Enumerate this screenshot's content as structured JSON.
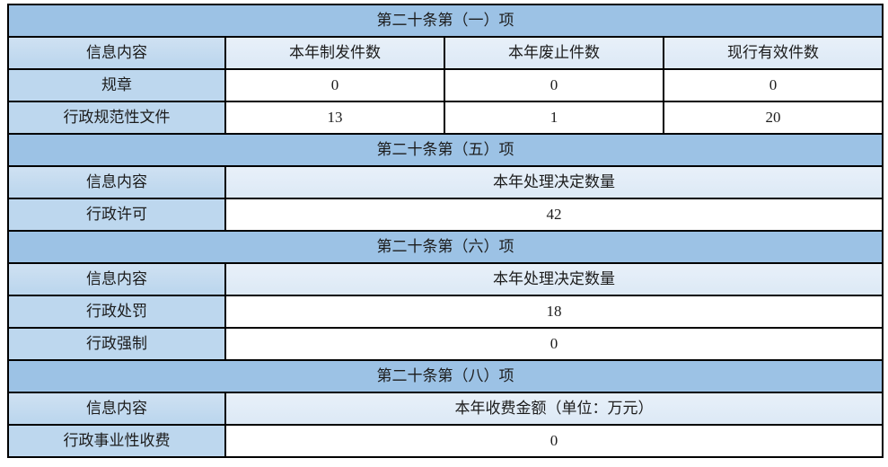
{
  "table": {
    "colors": {
      "section_header_bg": "#9CC2E5",
      "label_bg": "#BDD7EE",
      "column_header_bg": "#DEEAF6",
      "data_bg": "#FFFFFF",
      "border": "#000000",
      "text": "#1c1c1c"
    },
    "sections": [
      {
        "title": "第二十条第（一）项",
        "header": [
          "信息内容",
          "本年制发件数",
          "本年废止件数",
          "现行有效件数"
        ],
        "rows": [
          {
            "label": "规章",
            "values": [
              "0",
              "0",
              "0"
            ]
          },
          {
            "label": "行政规范性文件",
            "values": [
              "13",
              "1",
              "20"
            ]
          }
        ]
      },
      {
        "title": "第二十条第（五）项",
        "header": [
          "信息内容",
          "本年处理决定数量"
        ],
        "rows": [
          {
            "label": "行政许可",
            "values": [
              "42"
            ]
          }
        ]
      },
      {
        "title": "第二十条第（六）项",
        "header": [
          "信息内容",
          "本年处理决定数量"
        ],
        "rows": [
          {
            "label": "行政处罚",
            "values": [
              "18"
            ]
          },
          {
            "label": "行政强制",
            "values": [
              "0"
            ]
          }
        ]
      },
      {
        "title": "第二十条第（八）项",
        "header": [
          "信息内容",
          "本年收费金额（单位：万元）"
        ],
        "rows": [
          {
            "label": "行政事业性收费",
            "values": [
              "0"
            ]
          }
        ]
      }
    ]
  }
}
